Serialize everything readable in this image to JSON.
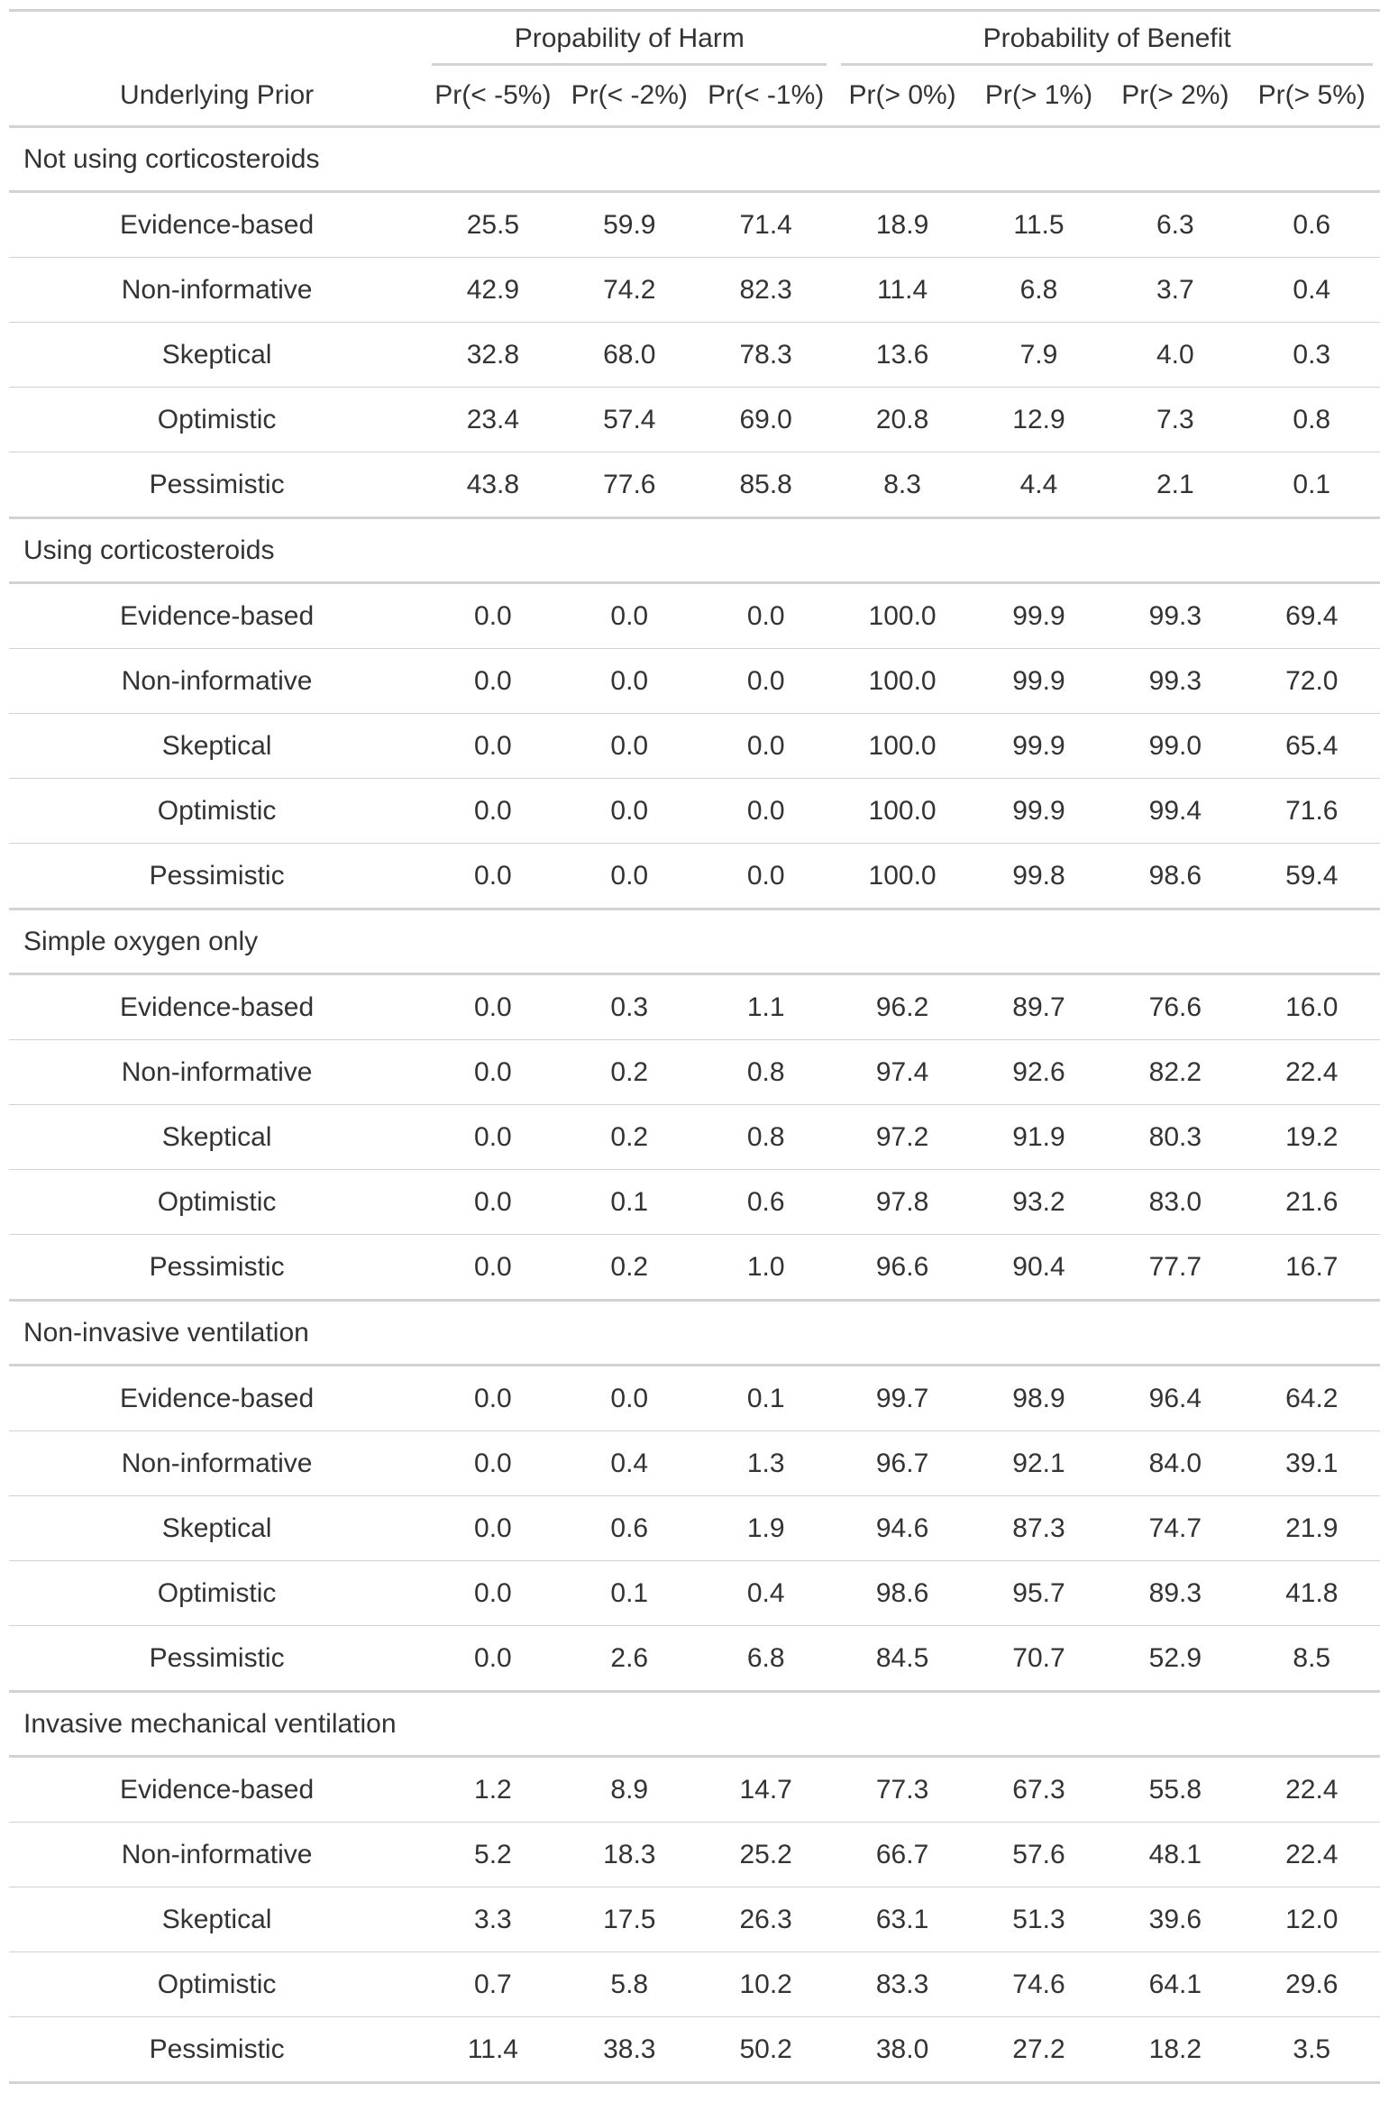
{
  "header": {
    "spanner_harm": "Propability of Harm",
    "spanner_benefit": "Probability of Benefit",
    "columns": [
      "Underlying Prior",
      "Pr(< -5%)",
      "Pr(< -2%)",
      "Pr(< -1%)",
      "Pr(> 0%)",
      "Pr(> 1%)",
      "Pr(> 2%)",
      "Pr(> 5%)"
    ]
  },
  "groups": [
    {
      "title": "Not using corticosteroids",
      "rows": [
        {
          "prior": "Evidence-based",
          "values": [
            "25.5",
            "59.9",
            "71.4",
            "18.9",
            "11.5",
            "6.3",
            "0.6"
          ]
        },
        {
          "prior": "Non-informative",
          "values": [
            "42.9",
            "74.2",
            "82.3",
            "11.4",
            "6.8",
            "3.7",
            "0.4"
          ]
        },
        {
          "prior": "Skeptical",
          "values": [
            "32.8",
            "68.0",
            "78.3",
            "13.6",
            "7.9",
            "4.0",
            "0.3"
          ]
        },
        {
          "prior": "Optimistic",
          "values": [
            "23.4",
            "57.4",
            "69.0",
            "20.8",
            "12.9",
            "7.3",
            "0.8"
          ]
        },
        {
          "prior": "Pessimistic",
          "values": [
            "43.8",
            "77.6",
            "85.8",
            "8.3",
            "4.4",
            "2.1",
            "0.1"
          ]
        }
      ]
    },
    {
      "title": "Using corticosteroids",
      "rows": [
        {
          "prior": "Evidence-based",
          "values": [
            "0.0",
            "0.0",
            "0.0",
            "100.0",
            "99.9",
            "99.3",
            "69.4"
          ]
        },
        {
          "prior": "Non-informative",
          "values": [
            "0.0",
            "0.0",
            "0.0",
            "100.0",
            "99.9",
            "99.3",
            "72.0"
          ]
        },
        {
          "prior": "Skeptical",
          "values": [
            "0.0",
            "0.0",
            "0.0",
            "100.0",
            "99.9",
            "99.0",
            "65.4"
          ]
        },
        {
          "prior": "Optimistic",
          "values": [
            "0.0",
            "0.0",
            "0.0",
            "100.0",
            "99.9",
            "99.4",
            "71.6"
          ]
        },
        {
          "prior": "Pessimistic",
          "values": [
            "0.0",
            "0.0",
            "0.0",
            "100.0",
            "99.8",
            "98.6",
            "59.4"
          ]
        }
      ]
    },
    {
      "title": "Simple oxygen only",
      "rows": [
        {
          "prior": "Evidence-based",
          "values": [
            "0.0",
            "0.3",
            "1.1",
            "96.2",
            "89.7",
            "76.6",
            "16.0"
          ]
        },
        {
          "prior": "Non-informative",
          "values": [
            "0.0",
            "0.2",
            "0.8",
            "97.4",
            "92.6",
            "82.2",
            "22.4"
          ]
        },
        {
          "prior": "Skeptical",
          "values": [
            "0.0",
            "0.2",
            "0.8",
            "97.2",
            "91.9",
            "80.3",
            "19.2"
          ]
        },
        {
          "prior": "Optimistic",
          "values": [
            "0.0",
            "0.1",
            "0.6",
            "97.8",
            "93.2",
            "83.0",
            "21.6"
          ]
        },
        {
          "prior": "Pessimistic",
          "values": [
            "0.0",
            "0.2",
            "1.0",
            "96.6",
            "90.4",
            "77.7",
            "16.7"
          ]
        }
      ]
    },
    {
      "title": "Non-invasive ventilation",
      "rows": [
        {
          "prior": "Evidence-based",
          "values": [
            "0.0",
            "0.0",
            "0.1",
            "99.7",
            "98.9",
            "96.4",
            "64.2"
          ]
        },
        {
          "prior": "Non-informative",
          "values": [
            "0.0",
            "0.4",
            "1.3",
            "96.7",
            "92.1",
            "84.0",
            "39.1"
          ]
        },
        {
          "prior": "Skeptical",
          "values": [
            "0.0",
            "0.6",
            "1.9",
            "94.6",
            "87.3",
            "74.7",
            "21.9"
          ]
        },
        {
          "prior": "Optimistic",
          "values": [
            "0.0",
            "0.1",
            "0.4",
            "98.6",
            "95.7",
            "89.3",
            "41.8"
          ]
        },
        {
          "prior": "Pessimistic",
          "values": [
            "0.0",
            "2.6",
            "6.8",
            "84.5",
            "70.7",
            "52.9",
            "8.5"
          ]
        }
      ]
    },
    {
      "title": "Invasive mechanical ventilation",
      "rows": [
        {
          "prior": "Evidence-based",
          "values": [
            "1.2",
            "8.9",
            "14.7",
            "77.3",
            "67.3",
            "55.8",
            "22.4"
          ]
        },
        {
          "prior": "Non-informative",
          "values": [
            "5.2",
            "18.3",
            "25.2",
            "66.7",
            "57.6",
            "48.1",
            "22.4"
          ]
        },
        {
          "prior": "Skeptical",
          "values": [
            "3.3",
            "17.5",
            "26.3",
            "63.1",
            "51.3",
            "39.6",
            "12.0"
          ]
        },
        {
          "prior": "Optimistic",
          "values": [
            "0.7",
            "5.8",
            "10.2",
            "83.3",
            "74.6",
            "64.1",
            "29.6"
          ]
        },
        {
          "prior": "Pessimistic",
          "values": [
            "11.4",
            "38.3",
            "50.2",
            "38.0",
            "27.2",
            "18.2",
            "3.5"
          ]
        }
      ]
    }
  ]
}
